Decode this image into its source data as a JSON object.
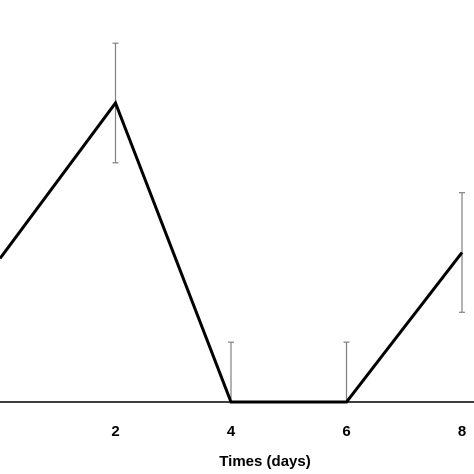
{
  "chart_data": {
    "type": "line",
    "title": "",
    "xlabel": "Times (days)",
    "ylabel": "",
    "x_ticks": [
      2,
      4,
      6,
      8
    ],
    "xlim": [
      0,
      8
    ],
    "ylim": [
      0,
      100
    ],
    "grid": false,
    "series": [
      {
        "x": [
          0,
          2,
          4,
          6,
          8
        ],
        "y": [
          48,
          100,
          0,
          0,
          50
        ],
        "error_upper": [
          null,
          20,
          20,
          20,
          20
        ],
        "error_lower": [
          null,
          20,
          0,
          0,
          20
        ]
      }
    ],
    "colors": {
      "line": "#000000",
      "error_bar": "#808080",
      "axis": "#000000"
    }
  }
}
